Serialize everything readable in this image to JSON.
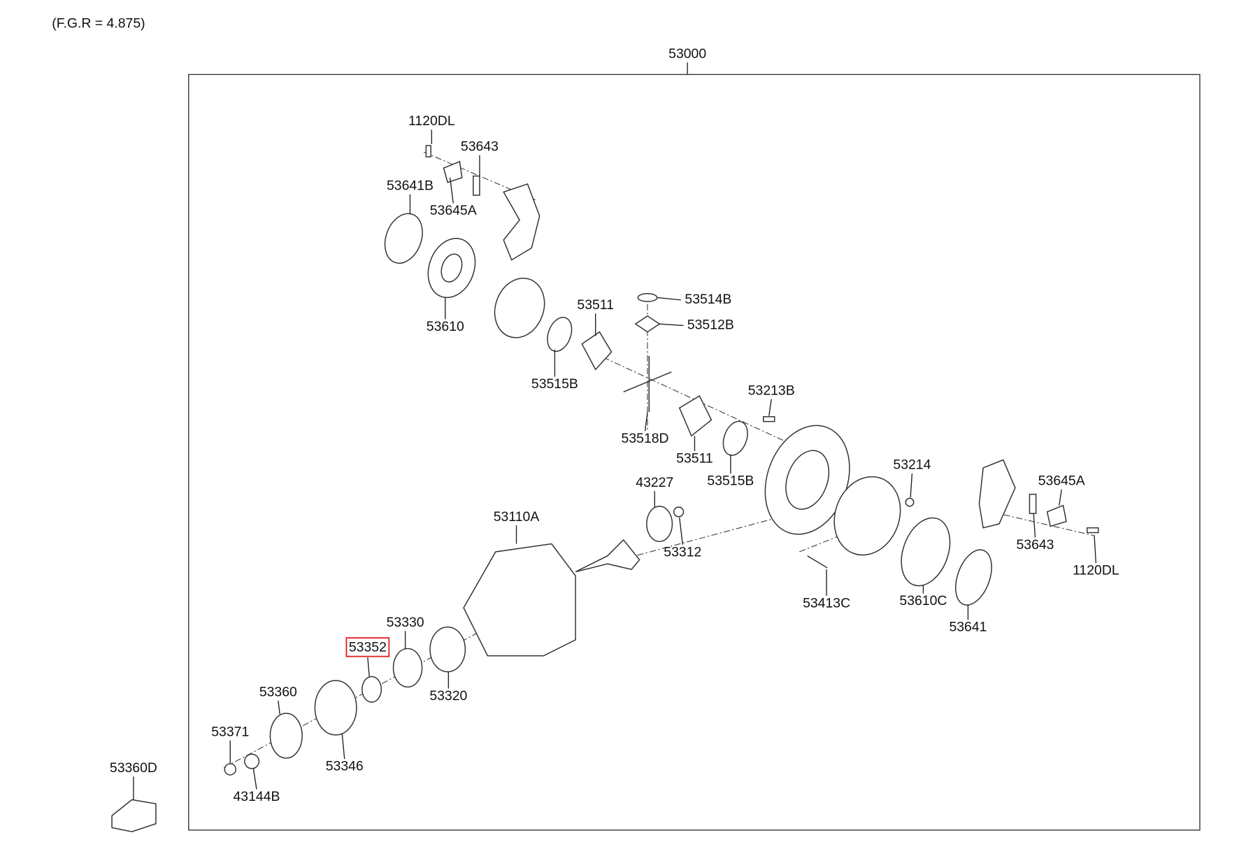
{
  "note": "(F.G.R = 4.875)",
  "assembly": "53000",
  "parts": [
    "1120DL",
    "53643",
    "53641B",
    "53645A",
    "53610",
    "53514B",
    "53511",
    "53512B",
    "53515B",
    "53213B",
    "53518D",
    "53511",
    "53515B",
    "53214",
    "53645A",
    "43227",
    "53110A",
    "53312",
    "53643",
    "1120DL",
    "53413C",
    "53610C",
    "53330",
    "53641",
    "53352",
    "53360",
    "53320",
    "53371",
    "53346",
    "43144B",
    "53360D"
  ]
}
